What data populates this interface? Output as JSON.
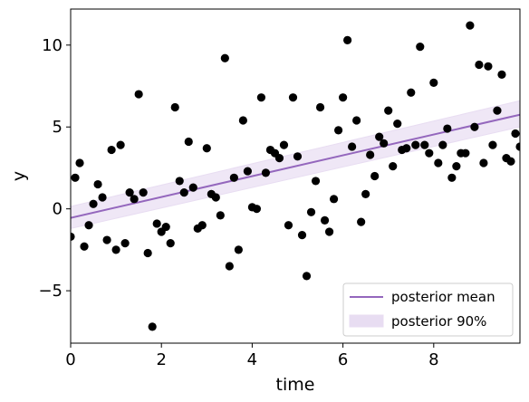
{
  "chart_data": {
    "type": "scatter",
    "title": "",
    "xlabel": "time",
    "ylabel": "y",
    "xlim": [
      0,
      9.9
    ],
    "ylim": [
      -8.2,
      12.2
    ],
    "x_ticks": [
      0,
      2,
      4,
      6,
      8
    ],
    "x_tick_labels": [
      "0",
      "2",
      "4",
      "6",
      "8"
    ],
    "y_ticks": [
      -5,
      0,
      5,
      10
    ],
    "y_tick_labels": [
      "−5",
      "0",
      "5",
      "10"
    ],
    "grid": false,
    "legend_position": "bottom-right",
    "colors": {
      "points": "#000000",
      "mean": "#9467bd",
      "band": "#e8ddf2"
    },
    "series": [
      {
        "name": "posterior mean",
        "kind": "line",
        "x": [
          0,
          9.9
        ],
        "y": [
          -0.55,
          5.75
        ]
      },
      {
        "name": "posterior 90%",
        "kind": "band",
        "x": [
          0,
          9.9
        ],
        "lower": [
          -1.2,
          5.0
        ],
        "upper": [
          0.15,
          6.6
        ]
      },
      {
        "kind": "points",
        "points": [
          [
            0.0,
            -1.7
          ],
          [
            0.1,
            1.9
          ],
          [
            0.2,
            2.8
          ],
          [
            0.3,
            -2.3
          ],
          [
            0.4,
            -1.0
          ],
          [
            0.5,
            0.3
          ],
          [
            0.6,
            1.5
          ],
          [
            0.7,
            0.7
          ],
          [
            0.8,
            -1.9
          ],
          [
            0.9,
            3.6
          ],
          [
            1.0,
            -2.5
          ],
          [
            1.1,
            3.9
          ],
          [
            1.2,
            -2.1
          ],
          [
            1.3,
            1.0
          ],
          [
            1.4,
            0.6
          ],
          [
            1.5,
            7.0
          ],
          [
            1.6,
            1.0
          ],
          [
            1.7,
            -2.7
          ],
          [
            1.8,
            -7.2
          ],
          [
            1.9,
            -0.9
          ],
          [
            2.0,
            -1.4
          ],
          [
            2.1,
            -1.1
          ],
          [
            2.2,
            -2.1
          ],
          [
            2.3,
            6.2
          ],
          [
            2.4,
            1.7
          ],
          [
            2.5,
            1.0
          ],
          [
            2.6,
            4.1
          ],
          [
            2.7,
            1.3
          ],
          [
            2.8,
            -1.2
          ],
          [
            2.9,
            -1.0
          ],
          [
            3.0,
            3.7
          ],
          [
            3.1,
            0.9
          ],
          [
            3.2,
            0.7
          ],
          [
            3.3,
            -0.4
          ],
          [
            3.4,
            9.2
          ],
          [
            3.5,
            -3.5
          ],
          [
            3.6,
            1.9
          ],
          [
            3.7,
            -2.5
          ],
          [
            3.8,
            5.4
          ],
          [
            3.9,
            2.3
          ],
          [
            4.0,
            0.1
          ],
          [
            4.1,
            0.0
          ],
          [
            4.2,
            6.8
          ],
          [
            4.3,
            2.2
          ],
          [
            4.4,
            3.6
          ],
          [
            4.5,
            3.4
          ],
          [
            4.6,
            3.1
          ],
          [
            4.7,
            3.9
          ],
          [
            4.8,
            -1.0
          ],
          [
            4.9,
            6.8
          ],
          [
            5.0,
            3.2
          ],
          [
            5.1,
            -1.6
          ],
          [
            5.2,
            -4.1
          ],
          [
            5.3,
            -0.2
          ],
          [
            5.4,
            1.7
          ],
          [
            5.5,
            6.2
          ],
          [
            5.6,
            -0.7
          ],
          [
            5.7,
            -1.4
          ],
          [
            5.8,
            0.6
          ],
          [
            5.9,
            4.8
          ],
          [
            6.0,
            6.8
          ],
          [
            6.1,
            10.3
          ],
          [
            6.2,
            3.8
          ],
          [
            6.3,
            5.4
          ],
          [
            6.4,
            -0.8
          ],
          [
            6.5,
            0.9
          ],
          [
            6.6,
            3.3
          ],
          [
            6.7,
            2.0
          ],
          [
            6.8,
            4.4
          ],
          [
            6.9,
            4.0
          ],
          [
            7.0,
            6.0
          ],
          [
            7.1,
            2.6
          ],
          [
            7.2,
            5.2
          ],
          [
            7.3,
            3.6
          ],
          [
            7.4,
            3.7
          ],
          [
            7.5,
            7.1
          ],
          [
            7.6,
            3.9
          ],
          [
            7.7,
            9.9
          ],
          [
            7.8,
            3.9
          ],
          [
            7.9,
            3.4
          ],
          [
            8.0,
            7.7
          ],
          [
            8.1,
            2.8
          ],
          [
            8.2,
            3.9
          ],
          [
            8.3,
            4.9
          ],
          [
            8.4,
            1.9
          ],
          [
            8.5,
            2.6
          ],
          [
            8.6,
            3.4
          ],
          [
            8.7,
            3.4
          ],
          [
            8.8,
            11.2
          ],
          [
            8.9,
            5.0
          ],
          [
            9.0,
            8.8
          ],
          [
            9.1,
            2.8
          ],
          [
            9.2,
            8.7
          ],
          [
            9.3,
            3.9
          ],
          [
            9.4,
            6.0
          ],
          [
            9.5,
            8.2
          ],
          [
            9.6,
            3.1
          ],
          [
            9.7,
            2.9
          ],
          [
            9.8,
            4.6
          ],
          [
            9.9,
            3.8
          ]
        ]
      }
    ]
  }
}
